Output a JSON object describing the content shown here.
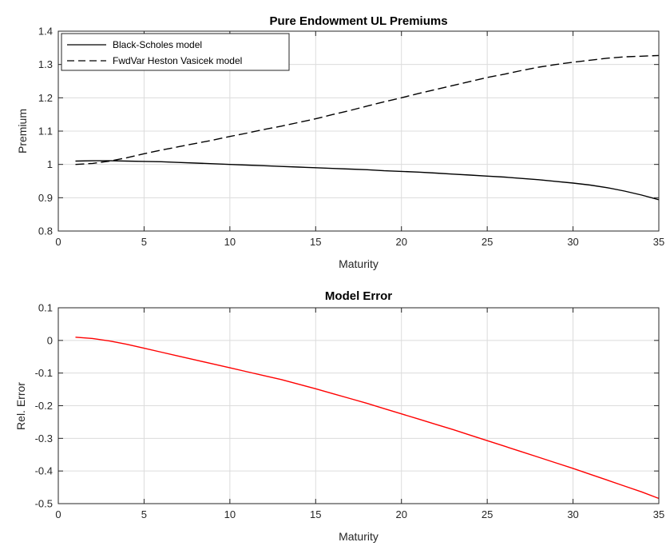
{
  "chart_data": [
    {
      "type": "line",
      "title": "Pure Endowment UL Premiums",
      "xlabel": "Maturity",
      "ylabel": "Premium",
      "xlim": [
        0,
        35
      ],
      "ylim": [
        0.8,
        1.4
      ],
      "xticks": [
        0,
        5,
        10,
        15,
        20,
        25,
        30,
        35
      ],
      "yticks": [
        0.8,
        0.9,
        1.0,
        1.1,
        1.2,
        1.3,
        1.4
      ],
      "xtick_labels": [
        "0",
        "5",
        "10",
        "15",
        "20",
        "25",
        "30",
        "35"
      ],
      "ytick_labels": [
        "0.8",
        "0.9",
        "1",
        "1.1",
        "1.2",
        "1.3",
        "1.4"
      ],
      "grid": true,
      "legend": "top-left",
      "x": [
        1,
        2,
        3,
        4,
        5,
        6,
        7,
        8,
        9,
        10,
        11,
        12,
        13,
        14,
        15,
        16,
        17,
        18,
        19,
        20,
        21,
        22,
        23,
        24,
        25,
        26,
        27,
        28,
        29,
        30,
        31,
        32,
        33,
        34,
        35
      ],
      "series": [
        {
          "name": "Black-Scholes model",
          "color": "#000000",
          "dash": "solid",
          "values": [
            1.01,
            1.011,
            1.011,
            1.01,
            1.009,
            1.008,
            1.006,
            1.004,
            1.002,
            1.0,
            0.998,
            0.996,
            0.994,
            0.992,
            0.99,
            0.988,
            0.986,
            0.984,
            0.981,
            0.979,
            0.977,
            0.974,
            0.971,
            0.968,
            0.965,
            0.962,
            0.958,
            0.954,
            0.949,
            0.944,
            0.938,
            0.93,
            0.92,
            0.908,
            0.894
          ]
        },
        {
          "name": "FwdVar Heston Vasicek model",
          "color": "#000000",
          "dash": "dashed",
          "values": [
            1.0,
            1.003,
            1.01,
            1.02,
            1.032,
            1.043,
            1.053,
            1.063,
            1.073,
            1.084,
            1.094,
            1.105,
            1.115,
            1.126,
            1.137,
            1.15,
            1.162,
            1.175,
            1.188,
            1.2,
            1.213,
            1.225,
            1.237,
            1.249,
            1.261,
            1.271,
            1.282,
            1.292,
            1.3,
            1.307,
            1.313,
            1.319,
            1.323,
            1.325,
            1.327
          ]
        }
      ]
    },
    {
      "type": "line",
      "title": "Model Error",
      "xlabel": "Maturity",
      "ylabel": "Rel. Error",
      "xlim": [
        0,
        35
      ],
      "ylim": [
        -0.5,
        0.1
      ],
      "xticks": [
        0,
        5,
        10,
        15,
        20,
        25,
        30,
        35
      ],
      "yticks": [
        -0.5,
        -0.4,
        -0.3,
        -0.2,
        -0.1,
        0,
        0.1
      ],
      "xtick_labels": [
        "0",
        "5",
        "10",
        "15",
        "20",
        "25",
        "30",
        "35"
      ],
      "ytick_labels": [
        "-0.5",
        "-0.4",
        "-0.3",
        "-0.2",
        "-0.1",
        "0",
        "0.1"
      ],
      "grid": true,
      "x": [
        1,
        2,
        3,
        4,
        5,
        6,
        7,
        8,
        9,
        10,
        11,
        12,
        13,
        14,
        15,
        16,
        17,
        18,
        19,
        20,
        21,
        22,
        23,
        24,
        25,
        26,
        27,
        28,
        29,
        30,
        31,
        32,
        33,
        34,
        35
      ],
      "series": [
        {
          "color": "#ff0000",
          "dash": "solid",
          "values": [
            0.01,
            0.006,
            -0.002,
            -0.012,
            -0.024,
            -0.036,
            -0.048,
            -0.06,
            -0.072,
            -0.084,
            -0.096,
            -0.108,
            -0.12,
            -0.134,
            -0.148,
            -0.163,
            -0.178,
            -0.193,
            -0.209,
            -0.225,
            -0.241,
            -0.257,
            -0.273,
            -0.29,
            -0.307,
            -0.324,
            -0.341,
            -0.358,
            -0.375,
            -0.392,
            -0.41,
            -0.428,
            -0.446,
            -0.464,
            -0.484
          ]
        }
      ]
    }
  ]
}
